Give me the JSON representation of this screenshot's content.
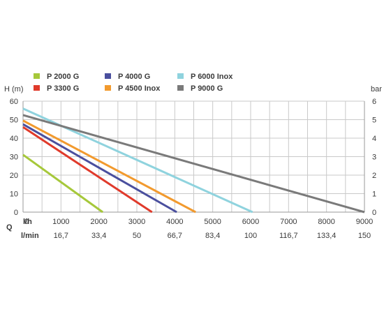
{
  "chart_data": {
    "type": "line",
    "left_axis_label": "H (m)",
    "right_axis_label": "bar",
    "q_label": "Q",
    "flow_lh_label": "l/h",
    "flow_lmin_label": "l/min",
    "xlim": [
      0,
      9000
    ],
    "ylim": [
      0,
      60
    ],
    "right_ylim": [
      0,
      6
    ],
    "grid": true,
    "legend_position": "top",
    "y_ticks": [
      0,
      10,
      20,
      30,
      40,
      50,
      60
    ],
    "right_ticks": [
      0,
      1,
      2,
      3,
      4,
      5,
      6
    ],
    "x_ticks_lh": [
      {
        "value": 0,
        "label": "0"
      },
      {
        "value": 1000,
        "label": "1000"
      },
      {
        "value": 2000,
        "label": "2000"
      },
      {
        "value": 3000,
        "label": "3000"
      },
      {
        "value": 4000,
        "label": "4000"
      },
      {
        "value": 5000,
        "label": "5000"
      },
      {
        "value": 6000,
        "label": "6000"
      },
      {
        "value": 7000,
        "label": "7000"
      },
      {
        "value": 8000,
        "label": "8000"
      },
      {
        "value": 9000,
        "label": "9000"
      }
    ],
    "x_ticks_lmin": [
      {
        "value": 1000,
        "label": "16,7"
      },
      {
        "value": 2000,
        "label": "33,4"
      },
      {
        "value": 3000,
        "label": "50"
      },
      {
        "value": 4000,
        "label": "66,7"
      },
      {
        "value": 5000,
        "label": "83,4"
      },
      {
        "value": 6000,
        "label": "100"
      },
      {
        "value": 7000,
        "label": "116,7"
      },
      {
        "value": 8000,
        "label": "133,4"
      },
      {
        "value": 9000,
        "label": "150"
      }
    ],
    "series": [
      {
        "name": "P 2000 G",
        "color": "#a6c83a",
        "points": [
          [
            0,
            31
          ],
          [
            2100,
            0
          ]
        ]
      },
      {
        "name": "P 3300 G",
        "color": "#e03a2b",
        "points": [
          [
            0,
            46
          ],
          [
            3400,
            0
          ]
        ]
      },
      {
        "name": "P 4000 G",
        "color": "#4a4f9e",
        "points": [
          [
            0,
            47.5
          ],
          [
            4050,
            0
          ]
        ]
      },
      {
        "name": "P 4500 Inox",
        "color": "#f29a2e",
        "points": [
          [
            0,
            49.5
          ],
          [
            4550,
            0
          ]
        ]
      },
      {
        "name": "P 6000 Inox",
        "color": "#8fd3de",
        "points": [
          [
            0,
            56
          ],
          [
            6050,
            0
          ]
        ]
      },
      {
        "name": "P 9000 G",
        "color": "#7a7a7a",
        "points": [
          [
            0,
            52.5
          ],
          [
            9000,
            0
          ]
        ]
      }
    ]
  }
}
